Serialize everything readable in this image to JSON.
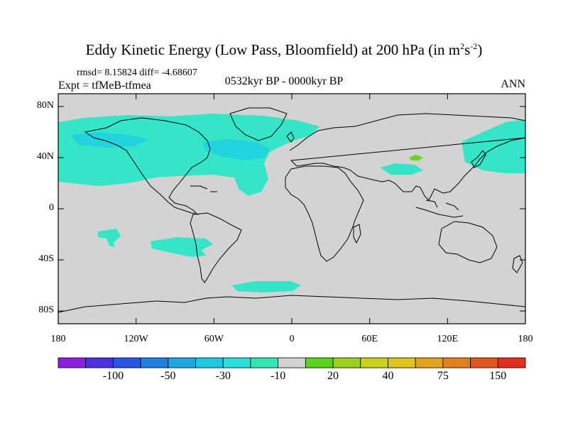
{
  "title": {
    "main": "Eddy Kinetic Energy (Low Pass, Bloomfield) at 200 hPa (in m",
    "exp1": "2",
    "mid": "s",
    "exp2": "-2",
    "end": ")"
  },
  "stats": "rmsd= 8.15824 diff= -4.68607",
  "experiment": "Expt = tfMeB-tfmea",
  "period": "0532kyr BP - 0000kyr BP",
  "season": "ANN",
  "map": {
    "lon_range": [
      -180,
      180
    ],
    "lat_range": [
      -90,
      90
    ],
    "background_color": "#d3d3d3",
    "y_ticks": [
      {
        "label": "80N",
        "lat": 80
      },
      {
        "label": "40N",
        "lat": 40
      },
      {
        "label": "0",
        "lat": 0
      },
      {
        "label": "40S",
        "lat": -40
      },
      {
        "label": "80S",
        "lat": -80
      }
    ],
    "x_ticks": [
      {
        "label": "180",
        "lon": -180
      },
      {
        "label": "120W",
        "lon": -120
      },
      {
        "label": "60W",
        "lon": -60
      },
      {
        "label": "0",
        "lon": 0
      },
      {
        "label": "60E",
        "lon": 60
      },
      {
        "label": "120E",
        "lon": 120
      },
      {
        "label": "180",
        "lon": 180
      }
    ]
  },
  "colorbar": {
    "colors": [
      "#8a1fe0",
      "#4d2ee0",
      "#2a55e0",
      "#1f80e0",
      "#1fa5e0",
      "#1fc8e0",
      "#2ae0d8",
      "#34e5b8",
      "#d3d3d3",
      "#5ad31f",
      "#9ad01f",
      "#c8d21f",
      "#e0c41f",
      "#e0a51f",
      "#e0801f",
      "#e0581f",
      "#e0301f"
    ],
    "labels": [
      {
        "text": "-100",
        "index": 2
      },
      {
        "text": "-50",
        "index": 4
      },
      {
        "text": "-30",
        "index": 6
      },
      {
        "text": "-10",
        "index": 8
      },
      {
        "text": "20",
        "index": 10
      },
      {
        "text": "40",
        "index": 12
      },
      {
        "text": "75",
        "index": 14
      },
      {
        "text": "150",
        "index": 16
      }
    ]
  },
  "anomaly_colors": {
    "weak": "#34e5c8",
    "moderate": "#22d3de",
    "strong": "#1cc0e8",
    "positive": "#6cd31f"
  }
}
